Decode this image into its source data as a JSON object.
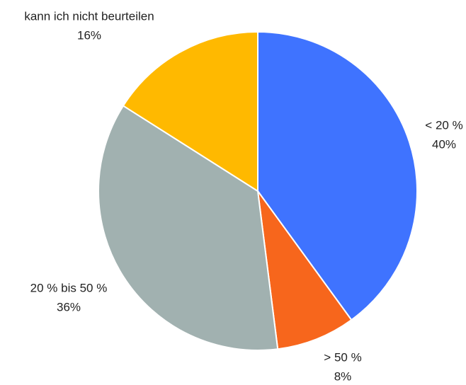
{
  "chart_data": {
    "type": "pie",
    "categories": [
      "< 20 %",
      "> 50 %",
      "20 % bis 50 %",
      "kann ich nicht beurteilen"
    ],
    "values": [
      40,
      8,
      36,
      16
    ],
    "value_labels": [
      "40%",
      "8%",
      "36%",
      "16%"
    ],
    "colors": [
      "#3f73ff",
      "#f7661c",
      "#a1b1b0",
      "#ffb900"
    ]
  }
}
